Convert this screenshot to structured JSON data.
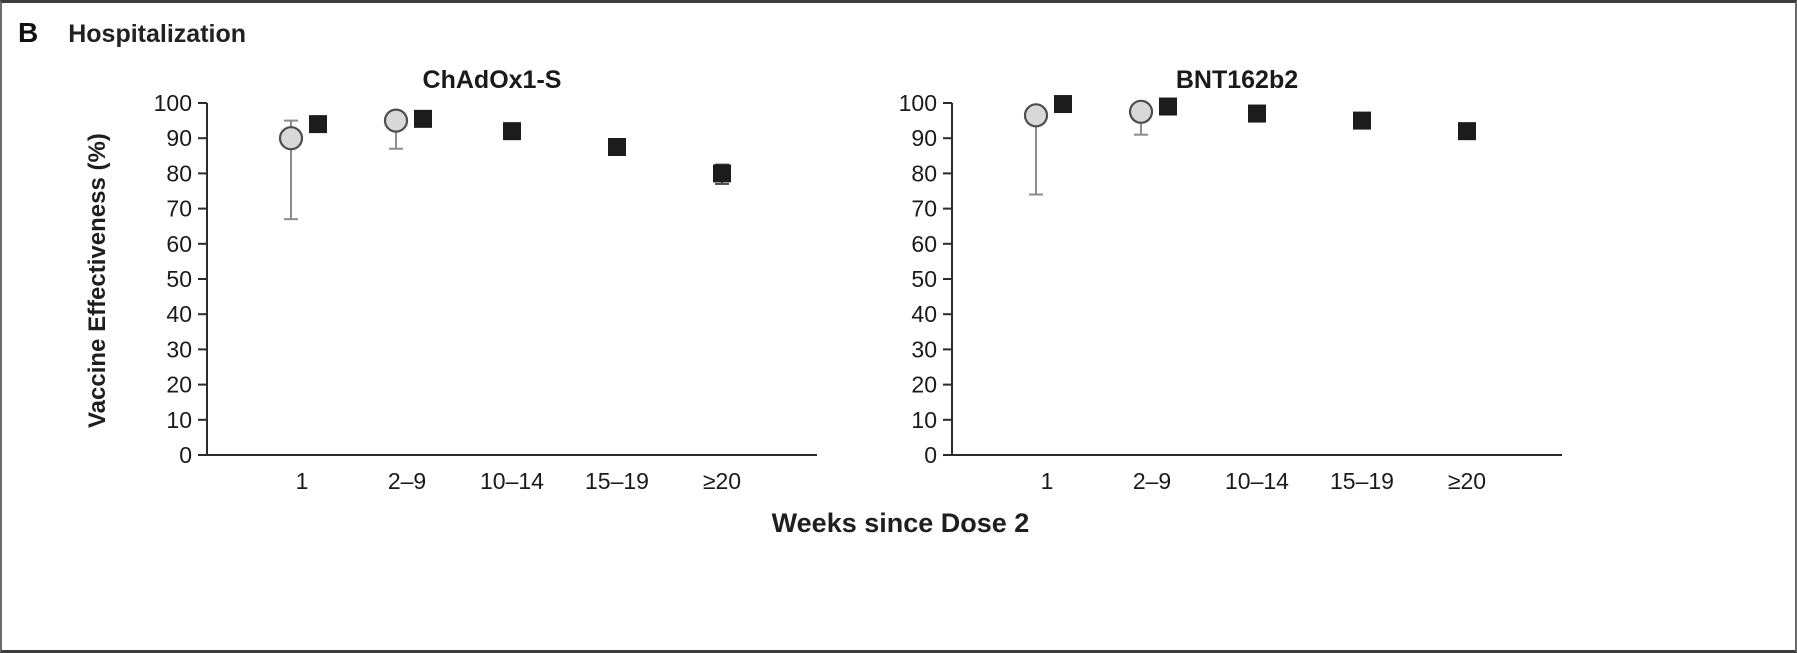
{
  "figure": {
    "panel_label": "B",
    "panel_title": "Hospitalization",
    "ylabel": "Vaccine Effectiveness (%)",
    "xlabel": "Weeks since Dose 2"
  },
  "style": {
    "axis_color": "#2b2b2b",
    "text_color": "#1a1a1a"
  },
  "chart_data": [
    {
      "type": "scatter",
      "title": "ChAdOx1-S",
      "xlabel": "Weeks since Dose 2",
      "ylabel": "Vaccine Effectiveness (%)",
      "categories": [
        "1",
        "2–9",
        "10–14",
        "15–19",
        "≥20"
      ],
      "ylim": [
        0,
        100
      ],
      "yticks": [
        0,
        10,
        20,
        30,
        40,
        50,
        60,
        70,
        80,
        90,
        100
      ],
      "grid": false,
      "legend": "none",
      "series": [
        {
          "name": "gray-circle-estimate",
          "marker": "circle",
          "fill": "#d8d8d8",
          "stroke": "#4d4d4d",
          "error_color": "#8c8c8c",
          "values": [
            90,
            95,
            null,
            null,
            null
          ],
          "ci_low": [
            67,
            87,
            null,
            null,
            null
          ],
          "ci_high": [
            95,
            97.5,
            null,
            null,
            null
          ]
        },
        {
          "name": "black-square-estimate",
          "marker": "square",
          "fill": "#1c1c1c",
          "stroke": "#1c1c1c",
          "error_color": "#4d4d4d",
          "values": [
            94,
            95.5,
            92,
            87.5,
            80
          ],
          "ci_low": [
            92,
            94,
            90.5,
            85.5,
            77
          ],
          "ci_high": [
            96,
            97,
            93.5,
            89.5,
            82.5
          ]
        }
      ]
    },
    {
      "type": "scatter",
      "title": "BNT162b2",
      "xlabel": "Weeks since Dose 2",
      "ylabel": "Vaccine Effectiveness (%)",
      "categories": [
        "1",
        "2–9",
        "10–14",
        "15–19",
        "≥20"
      ],
      "ylim": [
        0,
        100
      ],
      "yticks": [
        0,
        10,
        20,
        30,
        40,
        50,
        60,
        70,
        80,
        90,
        100
      ],
      "grid": false,
      "legend": "none",
      "series": [
        {
          "name": "gray-circle-estimate",
          "marker": "circle",
          "fill": "#d8d8d8",
          "stroke": "#4d4d4d",
          "error_color": "#8c8c8c",
          "values": [
            96.5,
            97.5,
            null,
            null,
            null
          ],
          "ci_low": [
            74,
            91,
            null,
            null,
            null
          ],
          "ci_high": [
            99,
            99.5,
            null,
            null,
            null
          ]
        },
        {
          "name": "black-square-estimate",
          "marker": "square",
          "fill": "#1c1c1c",
          "stroke": "#1c1c1c",
          "error_color": "#4d4d4d",
          "values": [
            99.7,
            99,
            97,
            95,
            92
          ],
          "ci_low": [
            99,
            98,
            96,
            94,
            90.5
          ],
          "ci_high": [
            100,
            99.5,
            98,
            96,
            93.5
          ]
        }
      ]
    }
  ]
}
